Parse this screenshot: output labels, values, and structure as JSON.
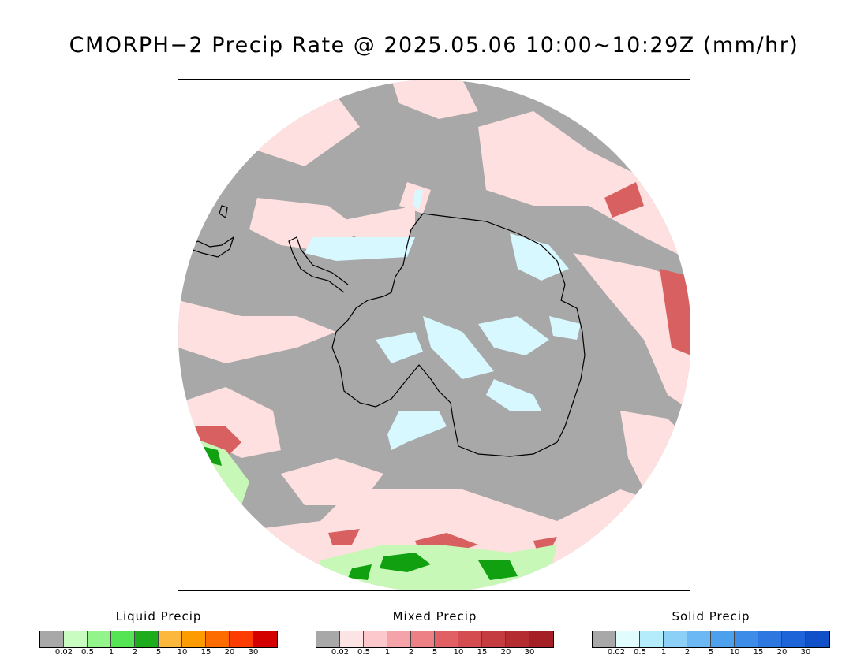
{
  "title": "CMORPH−2 Precip Rate @ 2025.05.06 10:00~10:29Z (mm/hr)",
  "map": {
    "projection": "South polar stereographic",
    "region": "Antarctica and Southern Ocean",
    "colors": {
      "no_precip": "#a8a8a8",
      "mixed_light": "#ffe0e0",
      "mixed_med": "#f4a0a0",
      "mixed_heavy": "#d86060",
      "solid_light": "#d8f8ff",
      "liquid_light": "#c8f8b8",
      "liquid_med": "#50e050",
      "liquid_heavy": "#10a010",
      "coast": "#000000"
    }
  },
  "legends": [
    {
      "title": "Liquid Precip",
      "colors": [
        "#a8a8a8",
        "#c8fcc0",
        "#94f48c",
        "#54e454",
        "#1cac1c",
        "#fcb83c",
        "#fc9c00",
        "#fc6c00",
        "#fc3c00",
        "#d40000"
      ],
      "ticks": [
        "0.02",
        "0.5",
        "1",
        "2",
        "5",
        "10",
        "15",
        "20",
        "30"
      ]
    },
    {
      "title": "Mixed Precip",
      "colors": [
        "#a8a8a8",
        "#fce4e4",
        "#fcc8cc",
        "#f4a4a8",
        "#ec8084",
        "#e06064",
        "#d44c50",
        "#c43c40",
        "#b42c30",
        "#a42024"
      ],
      "ticks": [
        "0.02",
        "0.5",
        "1",
        "2",
        "5",
        "10",
        "15",
        "20",
        "30"
      ]
    },
    {
      "title": "Solid Precip",
      "colors": [
        "#a8a8a8",
        "#e0fcfc",
        "#b4ecfc",
        "#8cd0f8",
        "#6cb8f4",
        "#4ca0ec",
        "#3c8ce8",
        "#2c78e0",
        "#1c64d8",
        "#1050c8"
      ],
      "ticks": [
        "0.02",
        "0.5",
        "1",
        "2",
        "5",
        "10",
        "15",
        "20",
        "30"
      ]
    }
  ]
}
